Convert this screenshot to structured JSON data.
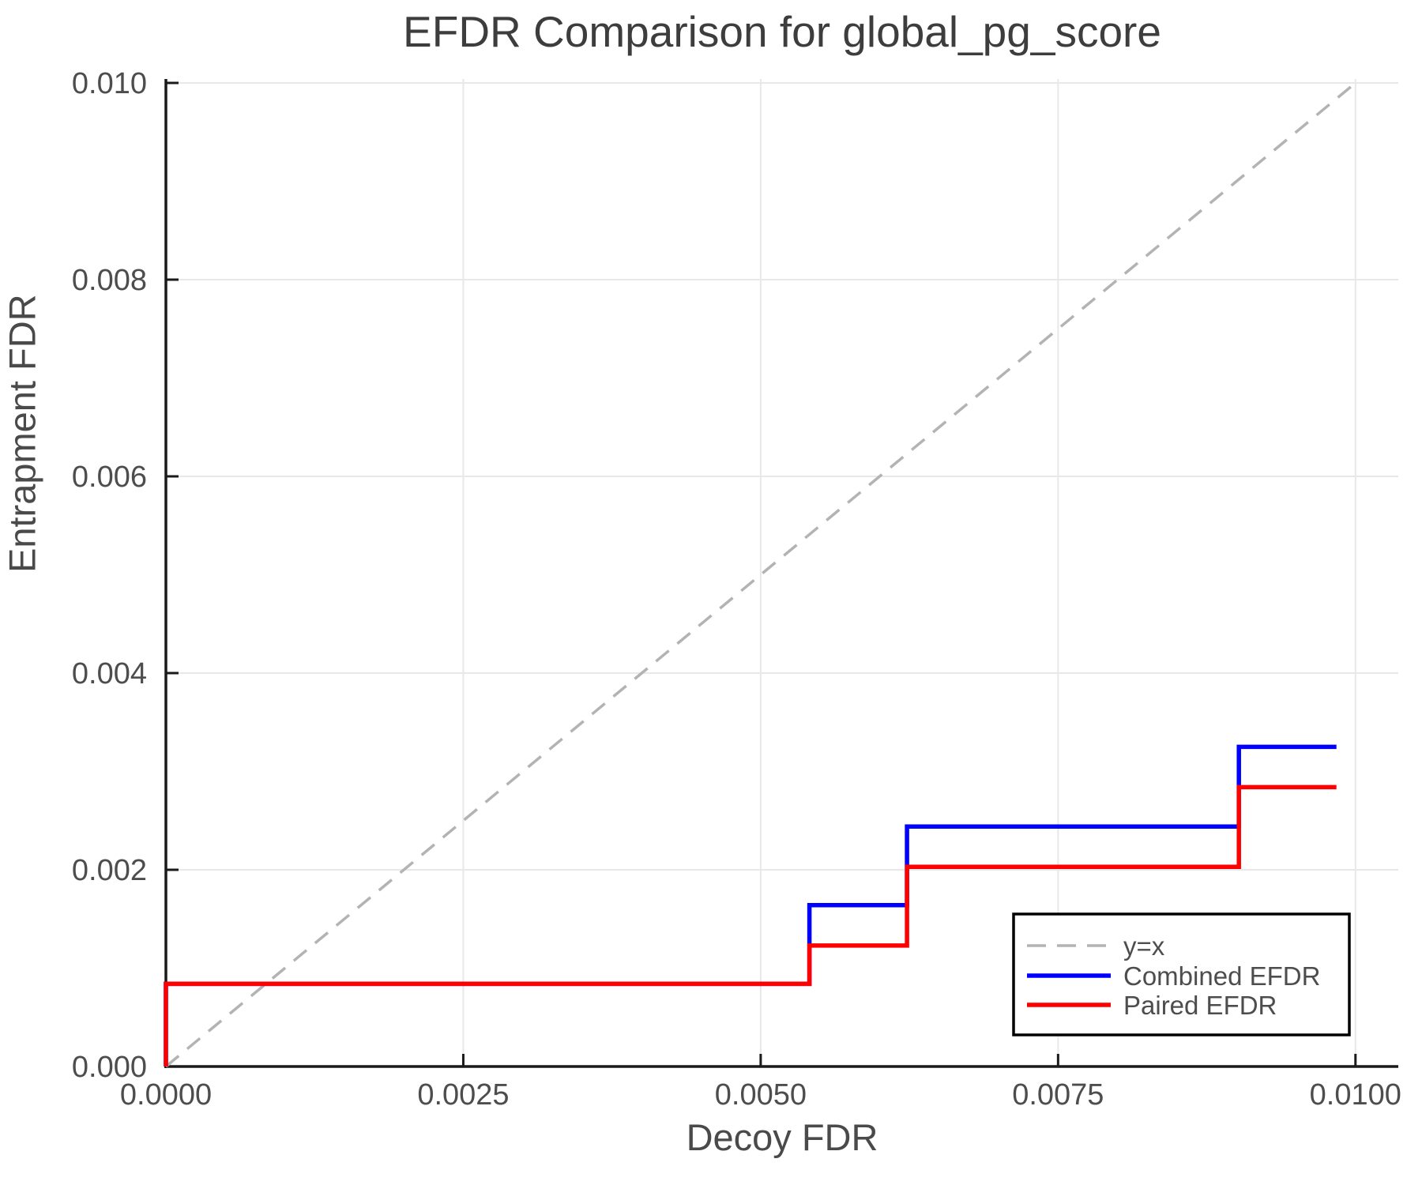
{
  "chart_data": {
    "type": "line",
    "title": "EFDR Comparison for global_pg_score",
    "xlabel": "Decoy FDR",
    "ylabel": "Entrapment FDR",
    "xlim": [
      0,
      0.01036
    ],
    "ylim": [
      0,
      0.01004
    ],
    "grid": true,
    "legend_position": "lower right",
    "xticks": {
      "values": [
        0,
        0.0025,
        0.005,
        0.0075,
        0.01
      ],
      "labels": [
        "0.0000",
        "0.0025",
        "0.0050",
        "0.0075",
        "0.0100"
      ]
    },
    "yticks": {
      "values": [
        0,
        0.002,
        0.004,
        0.006,
        0.008,
        0.01
      ],
      "labels": [
        "0.000",
        "0.002",
        "0.004",
        "0.006",
        "0.008",
        "0.010"
      ]
    },
    "series": [
      {
        "name": "y=x",
        "color": "#b3b3b3",
        "dashed": true,
        "points": [
          [
            0,
            0
          ],
          [
            0.01,
            0.01
          ]
        ]
      },
      {
        "name": "Combined EFDR",
        "color": "#0000ff",
        "dashed": false,
        "points": [
          [
            0,
            0
          ],
          [
            0,
            0.00084
          ],
          [
            0.00541,
            0.00084
          ],
          [
            0.00541,
            0.00164
          ],
          [
            0.00623,
            0.00164
          ],
          [
            0.00623,
            0.00244
          ],
          [
            0.00902,
            0.00244
          ],
          [
            0.00902,
            0.00325
          ],
          [
            0.00984,
            0.00325
          ]
        ]
      },
      {
        "name": "Paired EFDR",
        "color": "#ff0000",
        "dashed": false,
        "points": [
          [
            0,
            0
          ],
          [
            0,
            0.00084
          ],
          [
            0.00541,
            0.00084
          ],
          [
            0.00541,
            0.00123
          ],
          [
            0.00623,
            0.00123
          ],
          [
            0.00623,
            0.00203
          ],
          [
            0.00902,
            0.00203
          ],
          [
            0.00902,
            0.00284
          ],
          [
            0.00984,
            0.00284
          ]
        ]
      }
    ],
    "colors": {
      "grid": "#e8e8e8",
      "spine": "#1a1a1a",
      "tick_label": "#4d4d4d",
      "legend_text": "#4d4d4d",
      "legend_border": "#000000"
    }
  }
}
